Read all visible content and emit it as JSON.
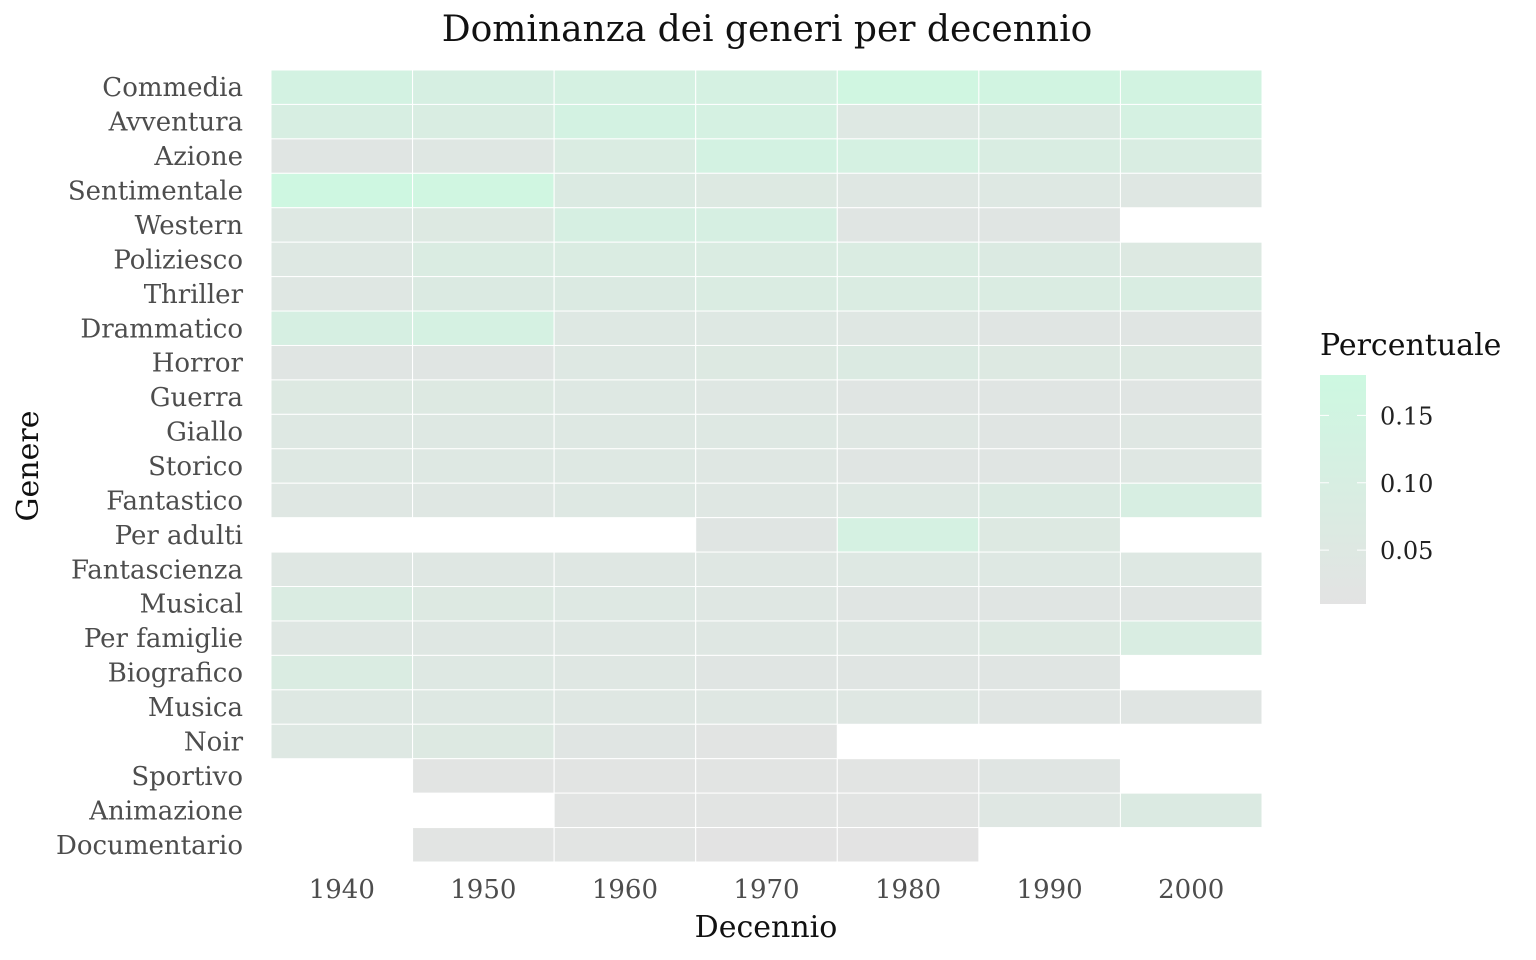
{
  "chart_data": {
    "type": "heatmap",
    "title": "Dominanza dei generi per decennio",
    "xlabel": "Decennio",
    "ylabel": "Genere",
    "x_categories": [
      "1940",
      "1950",
      "1960",
      "1970",
      "1980",
      "1990",
      "2000"
    ],
    "y_categories": [
      "Commedia",
      "Avventura",
      "Azione",
      "Sentimentale",
      "Western",
      "Poliziesco",
      "Thriller",
      "Drammatico",
      "Horror",
      "Guerra",
      "Giallo",
      "Storico",
      "Fantastico",
      "Per adulti",
      "Fantascienza",
      "Musical",
      "Per famiglie",
      "Biografico",
      "Musica",
      "Noir",
      "Sportivo",
      "Animazione",
      "Documentario"
    ],
    "values": [
      [
        0.13,
        0.11,
        0.12,
        0.12,
        0.16,
        0.15,
        0.14
      ],
      [
        0.1,
        0.09,
        0.13,
        0.12,
        0.05,
        0.07,
        0.12
      ],
      [
        0.03,
        0.04,
        0.08,
        0.13,
        0.12,
        0.09,
        0.09
      ],
      [
        0.17,
        0.16,
        0.07,
        0.06,
        0.04,
        0.05,
        0.04
      ],
      [
        0.05,
        0.06,
        0.11,
        0.11,
        0.03,
        0.03,
        null
      ],
      [
        0.05,
        0.08,
        0.08,
        0.08,
        0.08,
        0.07,
        0.06
      ],
      [
        0.04,
        0.07,
        0.07,
        0.08,
        0.08,
        0.08,
        0.09
      ],
      [
        0.11,
        0.12,
        0.05,
        0.05,
        0.04,
        0.03,
        0.03
      ],
      [
        0.03,
        0.03,
        0.05,
        0.06,
        0.07,
        0.06,
        0.06
      ],
      [
        0.06,
        0.06,
        0.05,
        0.04,
        0.03,
        0.03,
        0.03
      ],
      [
        0.05,
        0.05,
        0.05,
        0.05,
        0.04,
        0.03,
        0.04
      ],
      [
        0.05,
        0.05,
        0.05,
        0.04,
        0.03,
        0.03,
        0.04
      ],
      [
        0.04,
        0.04,
        0.05,
        0.04,
        0.05,
        0.07,
        0.1
      ],
      [
        null,
        null,
        null,
        0.03,
        0.12,
        0.06,
        null
      ],
      [
        0.04,
        0.04,
        0.04,
        0.04,
        0.05,
        0.05,
        0.05
      ],
      [
        0.08,
        0.06,
        0.05,
        0.04,
        0.03,
        0.03,
        0.03
      ],
      [
        0.04,
        0.04,
        0.04,
        0.04,
        0.04,
        0.06,
        0.09
      ],
      [
        0.08,
        0.05,
        0.04,
        0.03,
        0.03,
        0.03,
        null
      ],
      [
        0.05,
        0.05,
        0.04,
        0.04,
        0.04,
        0.03,
        0.03
      ],
      [
        0.05,
        0.06,
        0.03,
        0.02,
        null,
        null,
        null
      ],
      [
        null,
        0.02,
        0.02,
        0.02,
        0.02,
        0.03,
        null
      ],
      [
        null,
        null,
        0.02,
        0.02,
        0.02,
        0.04,
        0.07
      ],
      [
        null,
        0.02,
        0.02,
        0.01,
        0.01,
        null,
        null
      ]
    ],
    "color_scale": {
      "low": "#e3e3e3",
      "high": "#cdf8e1",
      "domain": [
        0.01,
        0.18
      ]
    },
    "legend": {
      "title": "Percentuale",
      "ticks": [
        "0.15",
        "0.10",
        "0.05"
      ],
      "tick_values": [
        0.15,
        0.1,
        0.05
      ],
      "placement": "right"
    },
    "grid": false,
    "tile_border_color": "#ffffff"
  }
}
